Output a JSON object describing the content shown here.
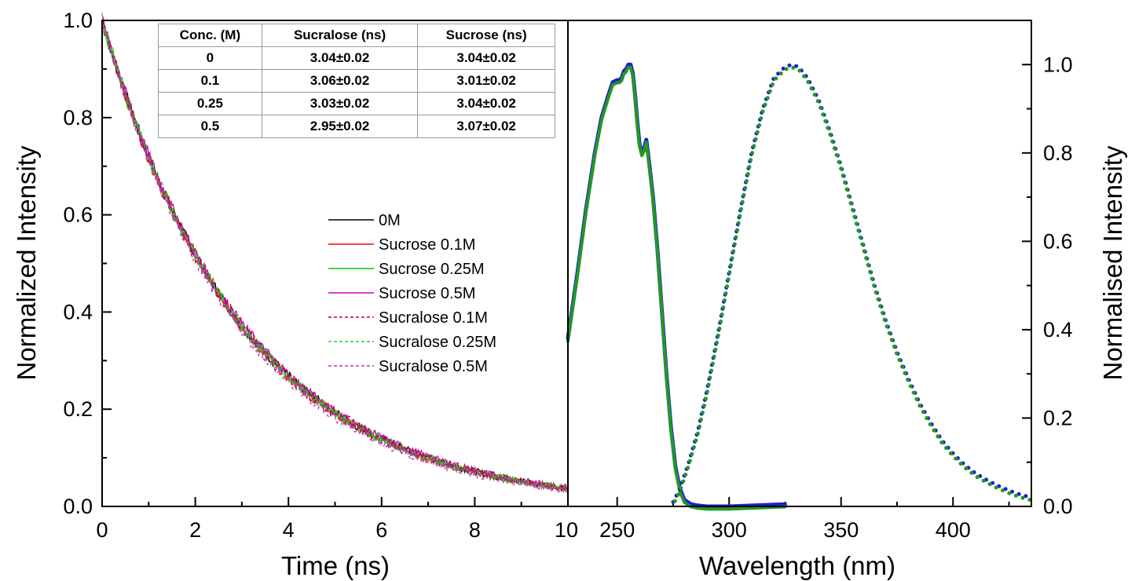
{
  "chart_data": [
    {
      "type": "line",
      "xlabel": "Time (ns)",
      "ylabel": "Normalized Intensity",
      "xlim": [
        0,
        10
      ],
      "ylim": [
        0,
        1.0
      ],
      "xticks": [
        "0",
        "2",
        "4",
        "6",
        "8",
        "10"
      ],
      "yticks": [
        "0.0",
        "0.2",
        "0.4",
        "0.6",
        "0.8",
        "1.0"
      ],
      "decay_lifetime_ns": 3.04,
      "legend_position": "center-right",
      "series": [
        {
          "name": "0M",
          "color": "#000000",
          "style": "solid",
          "lifetime_ns": 3.04
        },
        {
          "name": "Sucrose 0.1M",
          "color": "#ff0000",
          "style": "solid",
          "lifetime_ns": 3.01
        },
        {
          "name": "Sucrose 0.25M",
          "color": "#00cc00",
          "style": "solid",
          "lifetime_ns": 3.04
        },
        {
          "name": "Sucrose 0.5M",
          "color": "#cc00cc",
          "style": "solid",
          "lifetime_ns": 3.07
        },
        {
          "name": "Sucralose 0.1M",
          "color": "#cc0033",
          "style": "dashed",
          "lifetime_ns": 3.06
        },
        {
          "name": "Sucralose 0.25M",
          "color": "#33cc33",
          "style": "dashed",
          "lifetime_ns": 3.03
        },
        {
          "name": "Sucralose 0.5M",
          "color": "#bb33bb",
          "style": "dashed",
          "lifetime_ns": 2.95
        }
      ],
      "table": {
        "headers": [
          "Conc. (M)",
          "Sucralose (ns)",
          "Sucrose (ns)"
        ],
        "rows": [
          [
            "0",
            "3.04±0.02",
            "3.04±0.02"
          ],
          [
            "0.1",
            "3.06±0.02",
            "3.01±0.02"
          ],
          [
            "0.25",
            "3.03±0.02",
            "3.04±0.02"
          ],
          [
            "0.5",
            "2.95±0.02",
            "3.07±0.02"
          ]
        ]
      }
    },
    {
      "type": "line",
      "xlabel": "Wavelength (nm)",
      "ylabel": "Normalised Intensity",
      "xlim": [
        228,
        435
      ],
      "ylim": [
        0,
        1.1
      ],
      "xticks": [
        "250",
        "300",
        "350",
        "400"
      ],
      "yticks": [
        "0.0",
        "0.2",
        "0.4",
        "0.6",
        "0.8",
        "1.0"
      ],
      "series": [
        {
          "kind": "excitation",
          "style": "solid",
          "colors": [
            "#1f1fcf",
            "#229922"
          ],
          "x": [
            228,
            232,
            236,
            240,
            243,
            246,
            248,
            250,
            251,
            252,
            253,
            254,
            255,
            256,
            257,
            258,
            259,
            260,
            261,
            262,
            263,
            264,
            266,
            268,
            270,
            272,
            274,
            276,
            278,
            280,
            283,
            286,
            290,
            300,
            310,
            325
          ],
          "y": [
            0.38,
            0.52,
            0.67,
            0.8,
            0.88,
            0.93,
            0.96,
            0.965,
            0.965,
            0.97,
            0.985,
            0.99,
            1.0,
            1.0,
            0.98,
            0.93,
            0.87,
            0.82,
            0.8,
            0.81,
            0.83,
            0.79,
            0.7,
            0.58,
            0.44,
            0.3,
            0.18,
            0.09,
            0.04,
            0.015,
            0.005,
            0.002,
            0.0,
            0.0,
            0.002,
            0.005
          ]
        },
        {
          "kind": "emission",
          "style": "dotted",
          "colors": [
            "#1f1fcf",
            "#229922"
          ],
          "x": [
            275,
            278,
            282,
            286,
            290,
            295,
            300,
            305,
            310,
            315,
            320,
            325,
            328,
            331,
            335,
            340,
            345,
            350,
            355,
            360,
            365,
            370,
            375,
            380,
            385,
            390,
            395,
            400,
            405,
            410,
            415,
            420,
            425,
            430,
            435
          ],
          "y": [
            0.01,
            0.04,
            0.1,
            0.17,
            0.26,
            0.39,
            0.53,
            0.67,
            0.8,
            0.9,
            0.97,
            0.995,
            1.0,
            0.995,
            0.97,
            0.92,
            0.85,
            0.77,
            0.68,
            0.59,
            0.5,
            0.42,
            0.35,
            0.29,
            0.235,
            0.19,
            0.15,
            0.12,
            0.095,
            0.075,
            0.06,
            0.047,
            0.036,
            0.027,
            0.02
          ]
        }
      ]
    }
  ]
}
